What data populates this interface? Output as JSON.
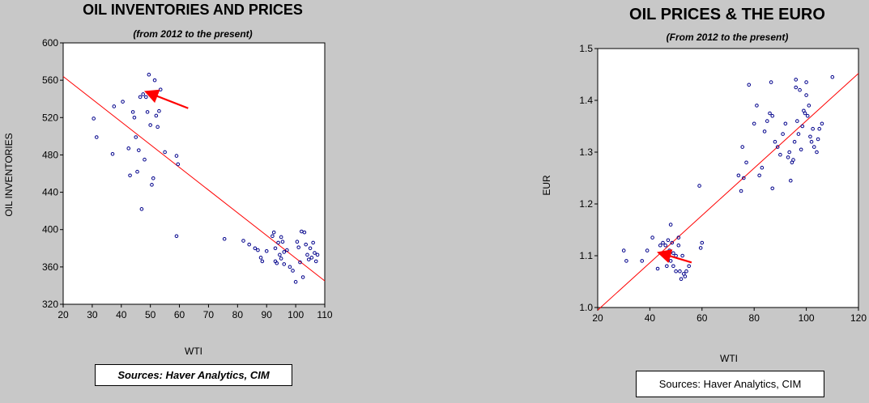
{
  "colors": {
    "background": "#c8c8c8",
    "plot_bg": "#ffffff",
    "points": "#00008b",
    "trend": "#ff0000",
    "arrow": "#ff0000"
  },
  "sources": {
    "left": "Sources:  Haver Analytics, CIM",
    "right": "Sources:  Haver Analytics, CIM"
  },
  "chart_data": [
    {
      "type": "scatter",
      "title": "OIL INVENTORIES AND PRICES",
      "subtitle": "(from 2012 to the present)",
      "xlabel": "WTI",
      "ylabel": "OIL INVENTORIES",
      "xlim": [
        20,
        110
      ],
      "ylim": [
        320,
        600
      ],
      "xticks": [
        "20",
        "30",
        "40",
        "50",
        "60",
        "70",
        "80",
        "90",
        "100",
        "110"
      ],
      "yticks": [
        "320",
        "360",
        "400",
        "440",
        "480",
        "520",
        "560",
        "600"
      ],
      "trendline": [
        [
          20,
          564
        ],
        [
          110,
          345
        ]
      ],
      "arrow": {
        "from": [
          63,
          530
        ],
        "to": [
          49,
          547
        ]
      },
      "points": [
        [
          30.5,
          519
        ],
        [
          31.5,
          499
        ],
        [
          37,
          481
        ],
        [
          37.5,
          532
        ],
        [
          40.5,
          537
        ],
        [
          42.5,
          487
        ],
        [
          43,
          458
        ],
        [
          44,
          526
        ],
        [
          44.5,
          520
        ],
        [
          45,
          499
        ],
        [
          45.5,
          462
        ],
        [
          46,
          485
        ],
        [
          46.5,
          542
        ],
        [
          47,
          422
        ],
        [
          47.5,
          545
        ],
        [
          48,
          475
        ],
        [
          48.5,
          542
        ],
        [
          49,
          526
        ],
        [
          49.5,
          566
        ],
        [
          50,
          512
        ],
        [
          50.5,
          448
        ],
        [
          51,
          455
        ],
        [
          51.5,
          560
        ],
        [
          52,
          522
        ],
        [
          52.5,
          510
        ],
        [
          53,
          527
        ],
        [
          53.5,
          550
        ],
        [
          55,
          483
        ],
        [
          59,
          479
        ],
        [
          59.5,
          470
        ],
        [
          59,
          393
        ],
        [
          75.5,
          390
        ],
        [
          82,
          388
        ],
        [
          84,
          384
        ],
        [
          86,
          380
        ],
        [
          87,
          378
        ],
        [
          88,
          370
        ],
        [
          88.5,
          366
        ],
        [
          90,
          377
        ],
        [
          92,
          393
        ],
        [
          92.5,
          397
        ],
        [
          93,
          380
        ],
        [
          93,
          366
        ],
        [
          93.5,
          364
        ],
        [
          94,
          386
        ],
        [
          94.5,
          373
        ],
        [
          95,
          392
        ],
        [
          95,
          369
        ],
        [
          95.5,
          387
        ],
        [
          96,
          376
        ],
        [
          96,
          363
        ],
        [
          97,
          378
        ],
        [
          98,
          360
        ],
        [
          99,
          356
        ],
        [
          100,
          344
        ],
        [
          100.5,
          387
        ],
        [
          101,
          381
        ],
        [
          101.5,
          365
        ],
        [
          102,
          398
        ],
        [
          102.5,
          349
        ],
        [
          103,
          397
        ],
        [
          103.5,
          384
        ],
        [
          104,
          373
        ],
        [
          104.5,
          368
        ],
        [
          105,
          380
        ],
        [
          105.5,
          370
        ],
        [
          106,
          386
        ],
        [
          106.5,
          375
        ],
        [
          107,
          366
        ],
        [
          107.5,
          373
        ]
      ]
    },
    {
      "type": "scatter",
      "title": "OIL PRICES & THE EURO",
      "subtitle": "(From 2012 to the present)",
      "xlabel": "WTI",
      "ylabel": "EUR",
      "xlim": [
        20,
        120
      ],
      "ylim": [
        1.0,
        1.5
      ],
      "xticks": [
        "20",
        "40",
        "60",
        "80",
        "100",
        "120"
      ],
      "yticks": [
        "1.0",
        "1.1",
        "1.2",
        "1.3",
        "1.4",
        "1.5"
      ],
      "trendline": [
        [
          20,
          0.995
        ],
        [
          120,
          1.452
        ]
      ],
      "arrow": {
        "from": [
          56,
          1.087
        ],
        "to": [
          44,
          1.105
        ]
      },
      "points": [
        [
          30,
          1.11
        ],
        [
          31,
          1.09
        ],
        [
          37,
          1.09
        ],
        [
          39,
          1.11
        ],
        [
          41,
          1.135
        ],
        [
          43,
          1.075
        ],
        [
          44,
          1.12
        ],
        [
          45,
          1.125
        ],
        [
          46,
          1.12
        ],
        [
          46.5,
          1.08
        ],
        [
          47,
          1.13
        ],
        [
          47.5,
          1.11
        ],
        [
          48,
          1.16
        ],
        [
          48,
          1.09
        ],
        [
          48.5,
          1.125
        ],
        [
          49,
          1.105
        ],
        [
          49,
          1.08
        ],
        [
          50,
          1.1
        ],
        [
          50,
          1.07
        ],
        [
          51,
          1.12
        ],
        [
          51,
          1.135
        ],
        [
          51.5,
          1.07
        ],
        [
          52,
          1.055
        ],
        [
          52.5,
          1.1
        ],
        [
          53,
          1.065
        ],
        [
          53.5,
          1.06
        ],
        [
          54,
          1.07
        ],
        [
          55,
          1.08
        ],
        [
          59,
          1.235
        ],
        [
          59.5,
          1.115
        ],
        [
          60,
          1.125
        ],
        [
          74,
          1.255
        ],
        [
          75,
          1.225
        ],
        [
          75.5,
          1.31
        ],
        [
          76,
          1.25
        ],
        [
          77,
          1.28
        ],
        [
          78,
          1.43
        ],
        [
          80,
          1.355
        ],
        [
          81,
          1.39
        ],
        [
          82,
          1.255
        ],
        [
          83,
          1.27
        ],
        [
          84,
          1.34
        ],
        [
          85,
          1.36
        ],
        [
          86,
          1.375
        ],
        [
          86.5,
          1.435
        ],
        [
          87,
          1.23
        ],
        [
          88,
          1.32
        ],
        [
          89,
          1.31
        ],
        [
          90,
          1.295
        ],
        [
          91,
          1.335
        ],
        [
          92,
          1.355
        ],
        [
          93,
          1.29
        ],
        [
          93.5,
          1.3
        ],
        [
          94,
          1.245
        ],
        [
          94.5,
          1.28
        ],
        [
          95,
          1.285
        ],
        [
          95.5,
          1.32
        ],
        [
          96,
          1.44
        ],
        [
          96.5,
          1.36
        ],
        [
          97,
          1.335
        ],
        [
          97.5,
          1.42
        ],
        [
          98,
          1.305
        ],
        [
          98.5,
          1.35
        ],
        [
          99,
          1.38
        ],
        [
          99.5,
          1.375
        ],
        [
          100,
          1.41
        ],
        [
          100.5,
          1.37
        ],
        [
          101,
          1.39
        ],
        [
          101.5,
          1.33
        ],
        [
          102,
          1.32
        ],
        [
          102.5,
          1.345
        ],
        [
          103,
          1.31
        ],
        [
          104,
          1.3
        ],
        [
          104.5,
          1.325
        ],
        [
          105,
          1.345
        ],
        [
          106,
          1.355
        ],
        [
          110,
          1.445
        ],
        [
          100,
          1.435
        ],
        [
          96,
          1.425
        ],
        [
          87,
          1.37
        ]
      ]
    }
  ]
}
